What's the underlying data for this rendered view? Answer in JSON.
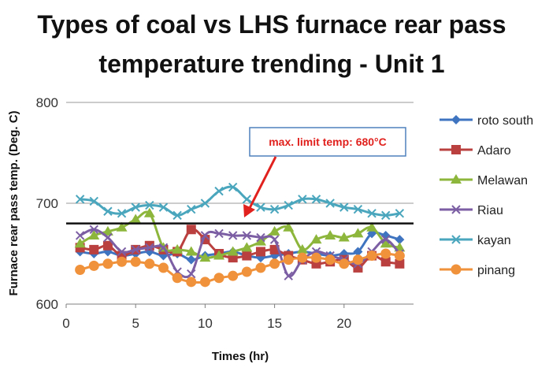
{
  "chart_data": {
    "type": "line",
    "title_lines": [
      "Types of coal vs LHS furnace rear pass",
      "temperature trending - Unit 1"
    ],
    "xlabel": "Times (hr)",
    "ylabel": "Furnace rear pass temp. (Deg. C)",
    "xlim": [
      0,
      25
    ],
    "ylim": [
      600,
      800
    ],
    "xticks": [
      "0",
      "5",
      "10",
      "15",
      "20"
    ],
    "yticks": [
      "600",
      "700",
      "800"
    ],
    "grid": "horizontal",
    "legend_position": "right",
    "annotation": "max. limit temp: 680°C",
    "limit_line": 680,
    "x": [
      1,
      2,
      3,
      4,
      5,
      6,
      7,
      8,
      9,
      10,
      11,
      12,
      13,
      14,
      15,
      16,
      17,
      18,
      19,
      20,
      21,
      22,
      23,
      24
    ],
    "series": [
      {
        "name": "roto south",
        "color": "#3f74c0",
        "marker": "diamond",
        "values": [
          652,
          650,
          652,
          648,
          650,
          652,
          648,
          650,
          644,
          648,
          650,
          652,
          648,
          646,
          648,
          650,
          652,
          650,
          648,
          650,
          652,
          670,
          668,
          664
        ]
      },
      {
        "name": "Adaro",
        "color": "#b9403f",
        "marker": "square",
        "values": [
          656,
          654,
          658,
          648,
          654,
          658,
          654,
          652,
          674,
          664,
          650,
          646,
          648,
          652,
          654,
          648,
          644,
          640,
          642,
          644,
          636,
          648,
          642,
          640
        ]
      },
      {
        "name": "Melawan",
        "color": "#8db63c",
        "marker": "triangle",
        "values": [
          660,
          668,
          672,
          676,
          684,
          690,
          656,
          654,
          652,
          646,
          648,
          652,
          656,
          662,
          672,
          676,
          654,
          664,
          668,
          666,
          670,
          676,
          660,
          656
        ]
      },
      {
        "name": "Riau",
        "color": "#7b5ea3",
        "marker": "x",
        "values": [
          668,
          674,
          666,
          652,
          654,
          656,
          656,
          632,
          630,
          668,
          670,
          668,
          668,
          666,
          664,
          628,
          644,
          652,
          648,
          644,
          640,
          652,
          664,
          650
        ]
      },
      {
        "name": "kayan",
        "color": "#4aa6bd",
        "marker": "x",
        "values": [
          704,
          702,
          692,
          690,
          696,
          698,
          696,
          688,
          694,
          700,
          712,
          716,
          704,
          696,
          694,
          698,
          704,
          704,
          700,
          696,
          694,
          690,
          688,
          690
        ]
      },
      {
        "name": "pinang",
        "color": "#f0913b",
        "marker": "circle",
        "values": [
          634,
          638,
          640,
          642,
          642,
          640,
          636,
          626,
          622,
          622,
          626,
          628,
          632,
          636,
          640,
          644,
          646,
          646,
          644,
          640,
          644,
          648,
          650,
          648
        ]
      }
    ]
  }
}
